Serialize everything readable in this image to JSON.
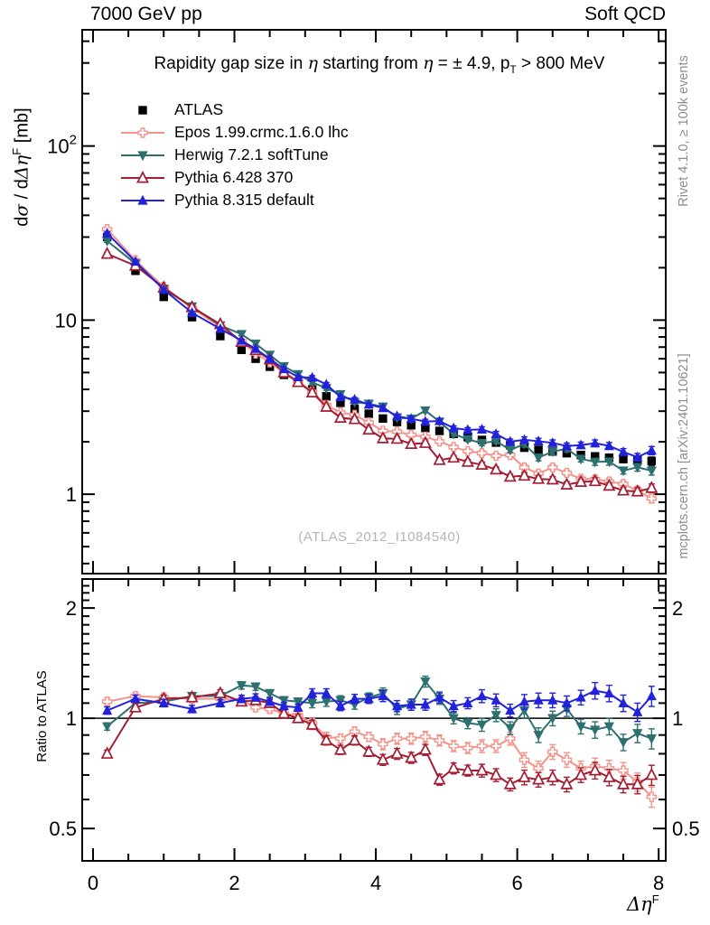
{
  "header": {
    "left": "7000 GeV pp",
    "right": "Soft QCD"
  },
  "title": {
    "p1": "Rapidity gap size in ",
    "g1": "η",
    "p2": " starting from ",
    "g2": "η",
    "p3": " = ± 4.9, p",
    "sub": "T",
    "p4": " > 800 MeV"
  },
  "watermark": "(ATLAS_2012_I1084540)",
  "side_notes": {
    "rivet": "Rivet 4.1.0, ≥ 100k events",
    "mcplots": "mcplots.cern.ch [arXiv:2401.10621]"
  },
  "ylabel": {
    "p1": "d",
    "g1": "σ",
    "p2": " / d",
    "g2": "Δη",
    "sup": "F",
    "p3": " [mb]"
  },
  "xlabel": {
    "g": "Δη",
    "sup": "F"
  },
  "ratio_label": "Ratio to ATLAS",
  "chart_data": {
    "type": "line",
    "x": [
      0.2,
      0.6,
      1.0,
      1.4,
      1.8,
      2.1,
      2.3,
      2.5,
      2.7,
      2.9,
      3.1,
      3.3,
      3.5,
      3.7,
      3.9,
      4.1,
      4.3,
      4.5,
      4.7,
      4.9,
      5.1,
      5.3,
      5.5,
      5.7,
      5.9,
      6.1,
      6.3,
      6.5,
      6.7,
      6.9,
      7.1,
      7.3,
      7.5,
      7.7,
      7.9
    ],
    "atlas": {
      "label": "ATLAS",
      "color": "#000000",
      "marker": "square",
      "values": [
        30.0,
        19.2,
        13.6,
        10.4,
        8.1,
        6.75,
        6.0,
        5.4,
        4.85,
        4.4,
        4.0,
        3.65,
        3.35,
        3.1,
        2.9,
        2.72,
        2.6,
        2.49,
        2.4,
        2.31,
        2.22,
        2.13,
        2.05,
        1.98,
        1.91,
        1.85,
        1.8,
        1.76,
        1.72,
        1.68,
        1.65,
        1.62,
        1.59,
        1.57,
        1.55
      ]
    },
    "mc_series": [
      {
        "label": "Epos 1.99.crmc.1.6.0 lhc",
        "color": "#f5928a",
        "marker": "plus-open",
        "ratio": [
          1.11,
          1.15,
          1.14,
          1.13,
          1.13,
          1.12,
          1.07,
          1.06,
          1.03,
          1.02,
          0.97,
          0.89,
          0.88,
          0.92,
          0.89,
          0.85,
          0.88,
          0.88,
          0.89,
          0.87,
          0.84,
          0.83,
          0.84,
          0.84,
          0.88,
          0.77,
          0.73,
          0.81,
          0.77,
          0.73,
          0.74,
          0.73,
          0.72,
          0.67,
          0.61
        ]
      },
      {
        "label": "Herwig 7.2.1 softTune",
        "color": "#2e6f6f",
        "marker": "triangle-down",
        "ratio": [
          0.95,
          1.1,
          1.11,
          1.15,
          1.15,
          1.23,
          1.22,
          1.17,
          1.12,
          1.11,
          1.1,
          1.11,
          1.12,
          1.09,
          1.14,
          1.17,
          1.06,
          1.09,
          1.26,
          1.13,
          1.0,
          0.97,
          0.96,
          1.02,
          0.94,
          1.05,
          0.9,
          1.0,
          1.06,
          0.95,
          0.93,
          0.95,
          0.86,
          0.91,
          0.88
        ]
      },
      {
        "label": "Pythia 6.428 370",
        "color": "#a21d32",
        "marker": "triangle-up-open",
        "ratio": [
          0.8,
          1.07,
          1.13,
          1.14,
          1.17,
          1.11,
          1.12,
          1.1,
          1.03,
          1.0,
          0.96,
          0.87,
          0.82,
          0.87,
          0.81,
          0.77,
          0.8,
          0.78,
          0.82,
          0.68,
          0.73,
          0.72,
          0.72,
          0.7,
          0.66,
          0.69,
          0.68,
          0.69,
          0.66,
          0.7,
          0.72,
          0.69,
          0.66,
          0.66,
          0.7
        ]
      },
      {
        "label": "Pythia 8.315 default",
        "color": "#2222dd",
        "marker": "triangle-up",
        "ratio": [
          1.05,
          1.13,
          1.1,
          1.06,
          1.1,
          1.13,
          1.14,
          1.11,
          1.08,
          1.07,
          1.17,
          1.17,
          1.08,
          1.13,
          1.13,
          1.15,
          1.08,
          1.09,
          1.09,
          1.14,
          1.08,
          1.1,
          1.15,
          1.12,
          1.05,
          1.11,
          1.12,
          1.12,
          1.1,
          1.14,
          1.19,
          1.17,
          1.1,
          1.04,
          1.15
        ]
      }
    ],
    "ratio_err": [
      0.02,
      0.02,
      0.02,
      0.02,
      0.02,
      0.02,
      0.02,
      0.02,
      0.02,
      0.02,
      0.025,
      0.025,
      0.025,
      0.025,
      0.025,
      0.03,
      0.03,
      0.03,
      0.03,
      0.03,
      0.03,
      0.03,
      0.035,
      0.035,
      0.035,
      0.04,
      0.04,
      0.04,
      0.04,
      0.04,
      0.045,
      0.045,
      0.045,
      0.05,
      0.055
    ],
    "x_axis": {
      "lim": [
        -0.153,
        8.1
      ],
      "major": [
        0,
        2,
        4,
        6,
        8
      ],
      "minor_step": 0.5,
      "labels": [
        "0",
        "2",
        "4",
        "6",
        "8"
      ]
    },
    "main_axis": {
      "scale": "log",
      "ylim": [
        0.35,
        465
      ],
      "ticks": [
        {
          "v": 100,
          "t": "10",
          "sup": "2"
        },
        {
          "v": 10,
          "t": "10"
        },
        {
          "v": 1,
          "t": "1"
        }
      ]
    },
    "ratio_axis": {
      "scale": "log",
      "ylim": [
        0.408,
        2.4
      ],
      "ticks": [
        {
          "v": 2,
          "t": "2"
        },
        {
          "v": 1,
          "t": "1"
        },
        {
          "v": 0.5,
          "t": "0.5"
        }
      ],
      "ref_line": 1
    }
  }
}
